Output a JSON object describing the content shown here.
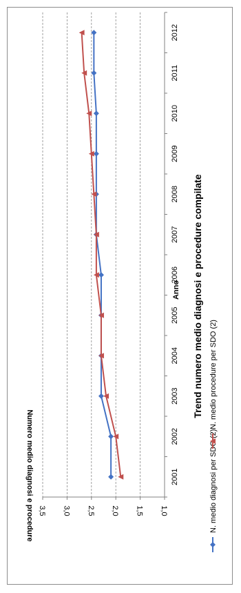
{
  "chart_data": {
    "type": "line",
    "title": "Trend numero medio diagnosi e procedure compilate",
    "xlabel": "Anno",
    "ylabel": "Numero medio diagnosi e procedure",
    "x": [
      "2001",
      "2002",
      "2003",
      "2004",
      "2005",
      "2006",
      "2007",
      "2008",
      "2009",
      "2010",
      "2011",
      "2012"
    ],
    "ylim": [
      1.0,
      3.5
    ],
    "yticks": [
      "1,0",
      "1,5",
      "2,0",
      "2,5",
      "3,0",
      "3,5"
    ],
    "ytick_values": [
      1.0,
      1.5,
      2.0,
      2.5,
      3.0,
      3.5
    ],
    "grid": true,
    "legend_position": "bottom",
    "series": [
      {
        "name": "N. medio diagnosi per SDO (2)",
        "color": "#4472c4",
        "marker": "diamond",
        "values": [
          2.1,
          2.1,
          2.3,
          2.3,
          2.3,
          2.3,
          2.4,
          2.4,
          2.4,
          2.4,
          2.45,
          2.45
        ]
      },
      {
        "name": "N. medio procedure per SDO (2)",
        "color": "#c0504d",
        "marker": "triangle",
        "values": [
          1.9,
          2.0,
          2.2,
          2.3,
          2.3,
          2.4,
          2.4,
          2.45,
          2.5,
          2.55,
          2.65,
          2.7
        ]
      }
    ]
  }
}
